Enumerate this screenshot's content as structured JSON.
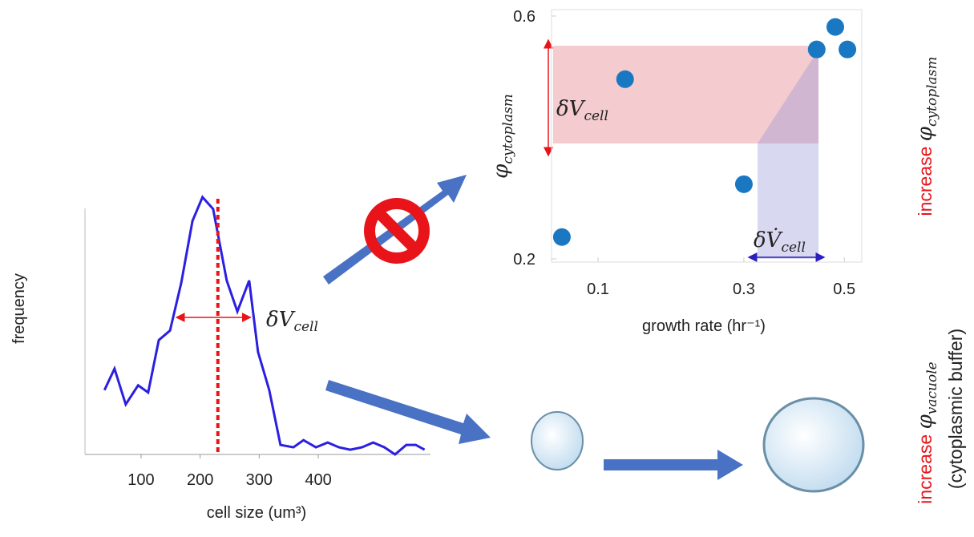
{
  "chart_data": [
    {
      "type": "line",
      "x_label": "cell size (um³)",
      "y_label": "frequency",
      "color": "#2b1fe0",
      "x": [
        38,
        55,
        74,
        95,
        112,
        130,
        149,
        168,
        187,
        204,
        222,
        245,
        263,
        283,
        298,
        317,
        336,
        358,
        375,
        396,
        416,
        435,
        454,
        474,
        493,
        512,
        530,
        549,
        565,
        580
      ],
      "values": [
        27,
        36,
        21,
        29,
        26,
        48,
        52,
        72,
        98,
        108,
        103,
        73,
        60,
        73,
        43,
        27,
        4,
        3,
        6,
        3,
        5,
        3,
        2,
        3,
        5,
        3,
        0,
        4,
        4,
        2
      ],
      "xlim": [
        5,
        590
      ],
      "xticks": [
        100,
        200,
        300,
        400
      ],
      "ylim": [
        0,
        110
      ],
      "marker_line": 230,
      "marker_color": "#e8141a",
      "spread": [
        160,
        285
      ],
      "spread_label": {
        "symbol": "δV",
        "subscript": "cell"
      }
    },
    {
      "type": "scatter",
      "x_label": "growth rate (hr⁻¹)",
      "y_label": {
        "symbol": "φ",
        "subscript": "cytoplasm"
      },
      "color": "#1a78c2",
      "x": [
        0.067,
        0.129,
        0.3,
        0.44,
        0.48,
        0.507
      ],
      "values": [
        0.236,
        0.496,
        0.323,
        0.545,
        0.582,
        0.545
      ],
      "xlim": [
        0.06,
        0.54
      ],
      "xticks": [
        0.1,
        0.3,
        0.5
      ],
      "xscale": "sqrt",
      "ylim": [
        0.2,
        0.6
      ],
      "yticks": [
        0.2,
        0.6
      ],
      "range_label": {
        "symbol": "δV",
        "subscript": "cell"
      },
      "rate_label": {
        "symbol": "δV̇",
        "subscript": "cell"
      }
    }
  ],
  "side_labels": {
    "top": {
      "word": "increase",
      "symbol": "φ",
      "subscript": "cytoplasm"
    },
    "bottom": {
      "word": "increase",
      "symbol": "φ",
      "subscript": "vacuole",
      "note": "(cytoplasmic buffer)"
    }
  }
}
